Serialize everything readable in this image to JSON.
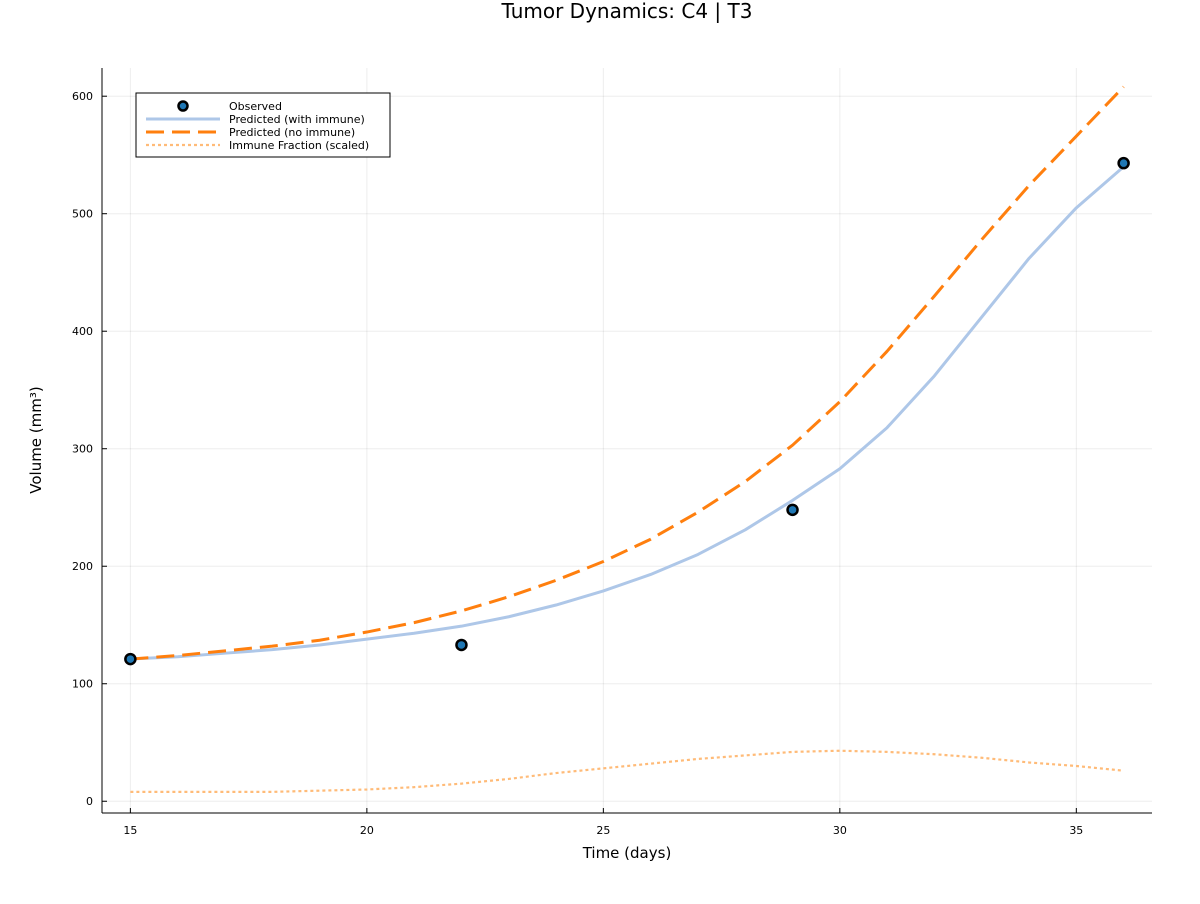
{
  "chart_data": {
    "type": "line",
    "title": "Tumor Dynamics: C4 | T3",
    "xlabel": "Time (days)",
    "ylabel": "Volume (mm³)",
    "xlim": [
      14.4,
      36.6
    ],
    "ylim": [
      -10,
      624
    ],
    "xticks": [
      15,
      20,
      25,
      30,
      35
    ],
    "yticks": [
      0,
      100,
      200,
      300,
      400,
      500,
      600
    ],
    "grid": true,
    "legend_position": "top-left",
    "series": [
      {
        "name": "Observed",
        "kind": "scatter",
        "color": "#1f77b4",
        "x": [
          15,
          22,
          29,
          36
        ],
        "y": [
          121,
          133,
          248,
          543
        ]
      },
      {
        "name": "Predicted (with immune)",
        "kind": "line",
        "style": "solid",
        "color": "#aec7e8",
        "x": [
          15,
          16,
          17,
          18,
          19,
          20,
          21,
          22,
          23,
          24,
          25,
          26,
          27,
          28,
          29,
          30,
          31,
          32,
          33,
          34,
          35,
          36
        ],
        "y": [
          121,
          123,
          126,
          129,
          133,
          138,
          143,
          149,
          157,
          167,
          179,
          193,
          210,
          231,
          256,
          283,
          318,
          362,
          412,
          462,
          505,
          540
        ]
      },
      {
        "name": "Predicted (no immune)",
        "kind": "line",
        "style": "dashed",
        "color": "#ff7f0e",
        "x": [
          15,
          16,
          17,
          18,
          19,
          20,
          21,
          22,
          23,
          24,
          25,
          26,
          27,
          28,
          29,
          30,
          31,
          32,
          33,
          34,
          35,
          36
        ],
        "y": [
          121,
          124,
          128,
          132,
          137,
          144,
          152,
          162,
          174,
          188,
          204,
          223,
          246,
          272,
          303,
          340,
          383,
          430,
          478,
          524,
          566,
          608
        ]
      },
      {
        "name": "Immune Fraction (scaled)",
        "kind": "line",
        "style": "dotted",
        "color": "#ffbb78",
        "x": [
          15,
          16,
          17,
          18,
          19,
          20,
          21,
          22,
          23,
          24,
          25,
          26,
          27,
          28,
          29,
          30,
          31,
          32,
          33,
          34,
          35,
          36
        ],
        "y": [
          8,
          8,
          8,
          8,
          9,
          10,
          12,
          15,
          19,
          24,
          28,
          32,
          36,
          39,
          42,
          43,
          42,
          40,
          37,
          33,
          30,
          26
        ]
      }
    ]
  }
}
